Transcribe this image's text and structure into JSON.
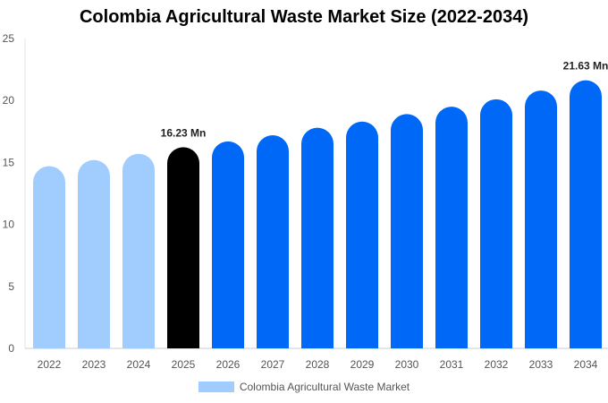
{
  "chart_data": {
    "type": "bar",
    "title": "Colombia Agricultural Waste Market Size (2022-2034)",
    "categories": [
      "2022",
      "2023",
      "2024",
      "2025",
      "2026",
      "2027",
      "2028",
      "2029",
      "2030",
      "2031",
      "2032",
      "2033",
      "2034"
    ],
    "series": [
      {
        "name": "Colombia Agricultural Waste Market",
        "values": [
          14.7,
          15.2,
          15.7,
          16.23,
          16.7,
          17.2,
          17.8,
          18.3,
          18.9,
          19.5,
          20.1,
          20.8,
          21.63
        ]
      }
    ],
    "data_labels": [
      {
        "category": "2025",
        "text": "16.23 Mn"
      },
      {
        "category": "2034",
        "text": "21.63 Mn"
      }
    ],
    "ylim": [
      0,
      25
    ],
    "yticks": [
      0,
      5,
      10,
      15,
      20,
      25
    ],
    "grid": false,
    "legend_position": "bottom",
    "colors": {
      "historical": "#a0cdfd",
      "current": "#000000",
      "forecast": "#0068f6"
    },
    "legend_color": "#a0cdfd"
  }
}
